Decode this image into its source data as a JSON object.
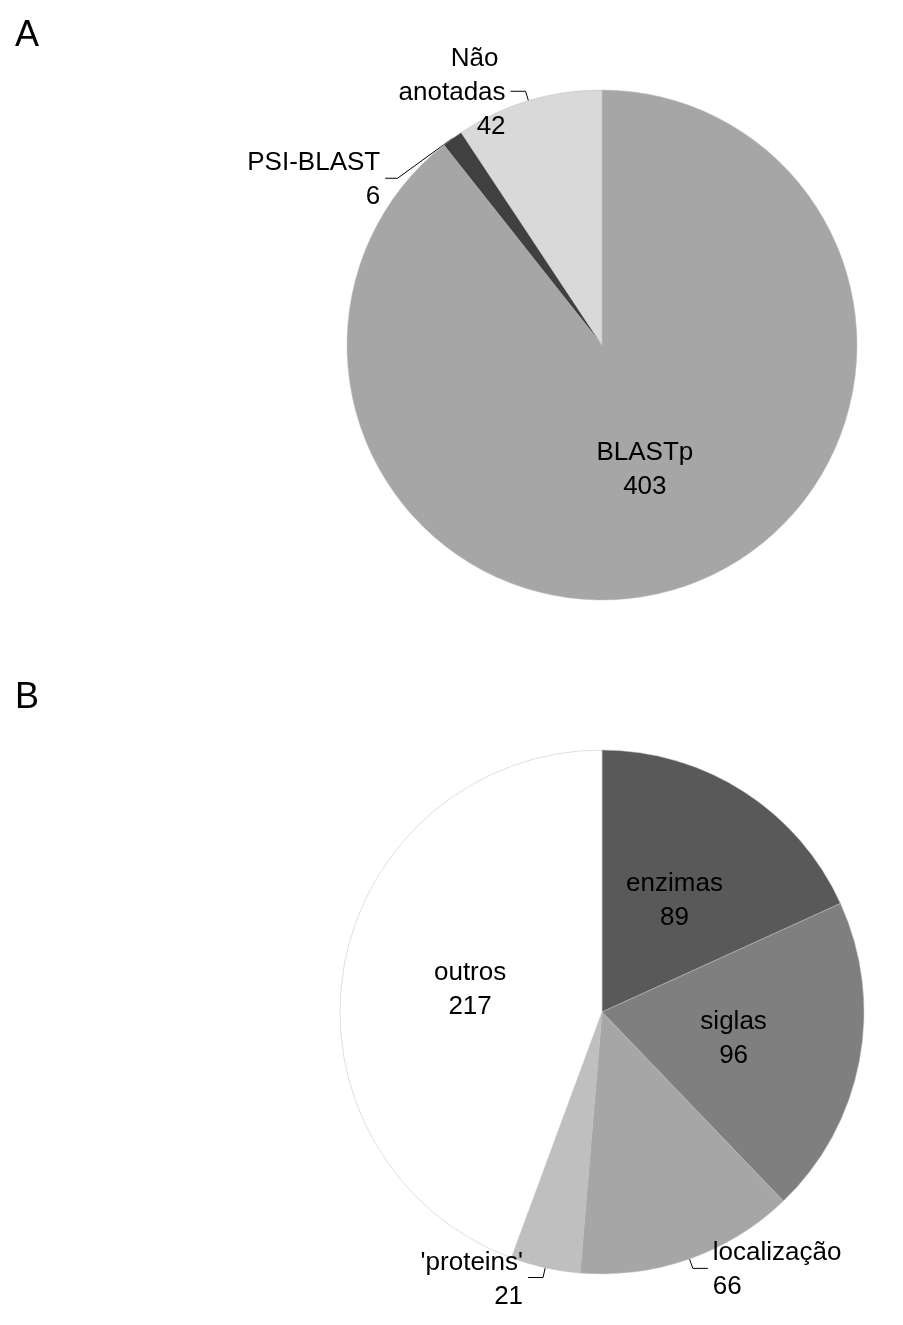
{
  "chart_data": [
    {
      "type": "pie",
      "title": "A",
      "categories": [
        "BLASTp",
        "PSI-BLAST",
        "Não anotadas"
      ],
      "values": [
        403,
        6,
        42
      ],
      "colors": [
        "#a6a6a6",
        "#404040",
        "#d9d9d9"
      ],
      "data_labels": true,
      "legend": false
    },
    {
      "type": "pie",
      "title": "B",
      "categories": [
        "enzimas",
        "siglas",
        "localização",
        "'proteins'",
        "outros"
      ],
      "values": [
        89,
        96,
        66,
        21,
        217
      ],
      "colors": [
        "#595959",
        "#7f7f7f",
        "#a6a6a6",
        "#bfbfbf",
        "#ffffff"
      ],
      "data_labels": true,
      "legend": false
    }
  ]
}
